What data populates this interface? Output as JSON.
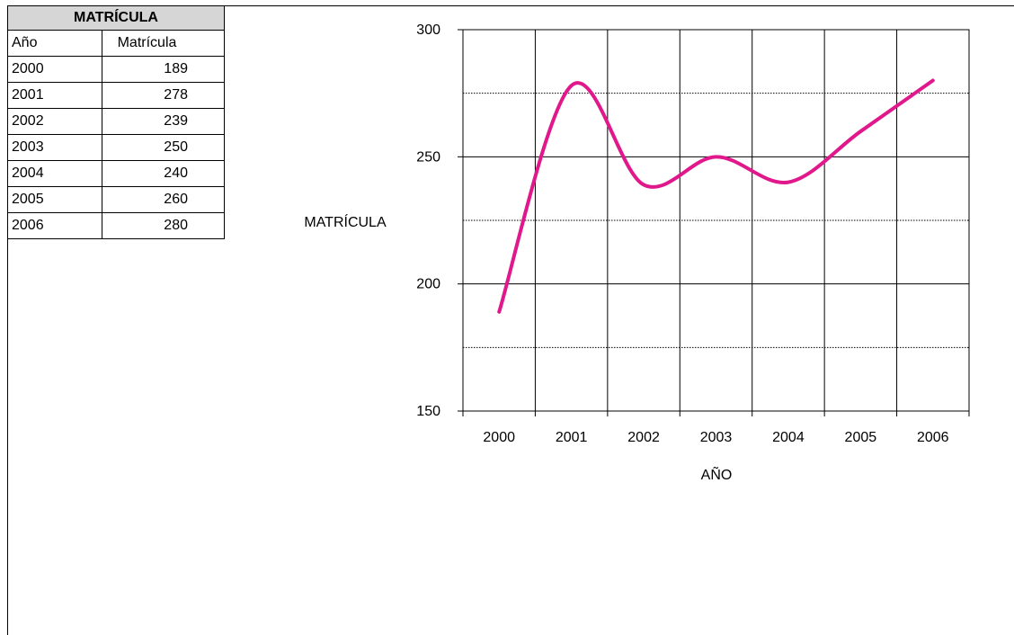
{
  "table": {
    "title": "MATRÍCULA",
    "headers": [
      "Año",
      "Matrícula"
    ],
    "rows": [
      [
        "2000",
        "189"
      ],
      [
        "2001",
        "278"
      ],
      [
        "2002",
        "239"
      ],
      [
        "2003",
        "250"
      ],
      [
        "2004",
        "240"
      ],
      [
        "2005",
        "260"
      ],
      [
        "2006",
        "280"
      ]
    ]
  },
  "chart_data": {
    "type": "line",
    "categories": [
      "2000",
      "2001",
      "2002",
      "2003",
      "2004",
      "2005",
      "2006"
    ],
    "series": [
      {
        "values": [
          189,
          278,
          239,
          250,
          240,
          260,
          280
        ],
        "color": "#e0188c",
        "smooth": true
      }
    ],
    "ylabel": "MATRÍCULA",
    "xlabel": "AÑO",
    "ylim": [
      150,
      300
    ],
    "yticks": [
      "150",
      "200",
      "250",
      "300"
    ],
    "major_grid": [
      150,
      200,
      250,
      300
    ],
    "minor_grid_dotted": [
      175,
      225,
      275
    ],
    "grid": true
  }
}
